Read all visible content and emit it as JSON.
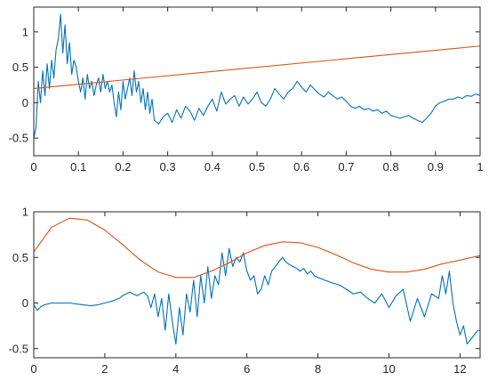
{
  "chart_data": [
    {
      "type": "line",
      "title": "",
      "xlabel": "",
      "ylabel": "",
      "xlim": [
        0,
        1
      ],
      "ylim": [
        -0.75,
        1.35
      ],
      "xticks": [
        0,
        0.1,
        0.2,
        0.3,
        0.4,
        0.5,
        0.6,
        0.7,
        0.8,
        0.9,
        1
      ],
      "xtick_labels": [
        "0",
        "0.1",
        "0.2",
        "0.3",
        "0.4",
        "0.5",
        "0.6",
        "0.7",
        "0.8",
        "0.9",
        "1"
      ],
      "yticks": [
        -0.5,
        0,
        0.5,
        1
      ],
      "ytick_labels": [
        "-0.5",
        "0",
        "0.5",
        "1"
      ],
      "grid": false,
      "series": [
        {
          "color": "#0072BD",
          "x": [
            0,
            0.005,
            0.01,
            0.015,
            0.02,
            0.025,
            0.03,
            0.035,
            0.04,
            0.045,
            0.05,
            0.055,
            0.06,
            0.065,
            0.07,
            0.075,
            0.08,
            0.085,
            0.09,
            0.095,
            0.1,
            0.105,
            0.11,
            0.115,
            0.12,
            0.125,
            0.13,
            0.135,
            0.14,
            0.145,
            0.15,
            0.155,
            0.16,
            0.165,
            0.17,
            0.175,
            0.18,
            0.185,
            0.19,
            0.195,
            0.2,
            0.205,
            0.21,
            0.215,
            0.22,
            0.225,
            0.23,
            0.235,
            0.24,
            0.245,
            0.25,
            0.255,
            0.26,
            0.265,
            0.27,
            0.28,
            0.29,
            0.3,
            0.31,
            0.32,
            0.33,
            0.34,
            0.35,
            0.36,
            0.37,
            0.38,
            0.39,
            0.4,
            0.41,
            0.42,
            0.43,
            0.44,
            0.45,
            0.46,
            0.47,
            0.48,
            0.49,
            0.5,
            0.51,
            0.52,
            0.53,
            0.54,
            0.55,
            0.56,
            0.57,
            0.58,
            0.59,
            0.6,
            0.61,
            0.62,
            0.63,
            0.64,
            0.65,
            0.66,
            0.67,
            0.68,
            0.69,
            0.7,
            0.71,
            0.72,
            0.73,
            0.74,
            0.75,
            0.76,
            0.77,
            0.78,
            0.79,
            0.8,
            0.81,
            0.82,
            0.83,
            0.84,
            0.85,
            0.86,
            0.87,
            0.88,
            0.89,
            0.9,
            0.91,
            0.92,
            0.93,
            0.94,
            0.95,
            0.96,
            0.97,
            0.98,
            0.99,
            1
          ],
          "y": [
            -0.5,
            -0.35,
            0.3,
            0.0,
            0.45,
            0.1,
            0.55,
            0.2,
            0.6,
            0.35,
            0.75,
            0.9,
            1.25,
            0.7,
            1.1,
            0.55,
            0.85,
            0.4,
            0.6,
            0.5,
            0.3,
            0.15,
            0.35,
            0.05,
            0.4,
            0.2,
            0.3,
            0.1,
            0.25,
            0.35,
            0.15,
            0.4,
            0.2,
            0.3,
            0.15,
            0.25,
            0.0,
            -0.2,
            0.15,
            -0.1,
            0.3,
            0.05,
            0.2,
            0.35,
            0.1,
            0.45,
            0.15,
            0.3,
            0.0,
            0.2,
            -0.1,
            0.15,
            -0.15,
            0.05,
            -0.25,
            -0.3,
            -0.2,
            -0.15,
            -0.28,
            -0.1,
            -0.22,
            -0.05,
            -0.12,
            -0.25,
            -0.08,
            -0.18,
            -0.05,
            0.05,
            -0.12,
            0.15,
            -0.02,
            0.05,
            0.1,
            -0.05,
            0.08,
            -0.02,
            0.05,
            0.15,
            0.0,
            -0.05,
            0.05,
            0.2,
            0.12,
            0.05,
            0.15,
            0.2,
            0.3,
            0.22,
            0.15,
            0.25,
            0.18,
            0.12,
            0.08,
            0.15,
            0.1,
            0.05,
            0.08,
            0.02,
            -0.05,
            -0.08,
            -0.05,
            -0.1,
            -0.08,
            -0.12,
            -0.1,
            -0.15,
            -0.12,
            -0.18,
            -0.2,
            -0.22,
            -0.2,
            -0.18,
            -0.22,
            -0.25,
            -0.28,
            -0.22,
            -0.15,
            -0.05,
            0.0,
            0.02,
            0.05,
            0.05,
            0.08,
            0.06,
            0.1,
            0.09,
            0.12,
            0.1
          ]
        },
        {
          "color": "#D95319",
          "x": [
            0,
            1
          ],
          "y": [
            0.2,
            0.8
          ]
        }
      ]
    },
    {
      "type": "line",
      "title": "",
      "xlabel": "",
      "ylabel": "",
      "xlim": [
        0,
        12.566
      ],
      "ylim": [
        -0.6,
        1.0
      ],
      "xticks": [
        0,
        2,
        4,
        6,
        8,
        10,
        12
      ],
      "xtick_labels": [
        "0",
        "2",
        "4",
        "6",
        "8",
        "10",
        "12"
      ],
      "yticks": [
        -0.5,
        0,
        0.5,
        1
      ],
      "ytick_labels": [
        "-0.5",
        "0",
        "0.5",
        "1"
      ],
      "grid": false,
      "series": [
        {
          "color": "#0072BD",
          "x": [
            0,
            0.1,
            0.2,
            0.3,
            0.4,
            0.5,
            0.6,
            0.8,
            1.0,
            1.2,
            1.4,
            1.6,
            1.8,
            2.0,
            2.2,
            2.4,
            2.5,
            2.6,
            2.7,
            2.8,
            2.9,
            3.0,
            3.1,
            3.2,
            3.3,
            3.4,
            3.5,
            3.6,
            3.7,
            3.8,
            3.9,
            4.0,
            4.1,
            4.2,
            4.3,
            4.4,
            4.5,
            4.6,
            4.7,
            4.8,
            4.9,
            5.0,
            5.1,
            5.2,
            5.3,
            5.4,
            5.5,
            5.6,
            5.7,
            5.8,
            5.9,
            6.0,
            6.1,
            6.2,
            6.3,
            6.4,
            6.5,
            6.6,
            6.7,
            6.8,
            6.9,
            7.0,
            7.1,
            7.2,
            7.3,
            7.4,
            7.5,
            7.6,
            7.7,
            7.8,
            7.9,
            8.0,
            8.2,
            8.4,
            8.6,
            8.8,
            9.0,
            9.2,
            9.4,
            9.6,
            9.8,
            10.0,
            10.2,
            10.4,
            10.6,
            10.8,
            11.0,
            11.2,
            11.4,
            11.5,
            11.6,
            11.7,
            11.8,
            11.9,
            12.0,
            12.1,
            12.2,
            12.3,
            12.4,
            12.5,
            12.566
          ],
          "y": [
            -0.02,
            -0.08,
            -0.04,
            -0.02,
            -0.01,
            0.0,
            0.0,
            0.0,
            0.0,
            -0.01,
            -0.02,
            -0.03,
            -0.02,
            0.0,
            0.02,
            0.05,
            0.08,
            0.1,
            0.12,
            0.1,
            0.08,
            0.1,
            0.12,
            0.08,
            -0.05,
            0.1,
            -0.15,
            0.05,
            -0.3,
            0.1,
            -0.2,
            -0.45,
            -0.05,
            -0.35,
            0.1,
            -0.1,
            0.25,
            -0.15,
            0.3,
            0.0,
            0.4,
            0.05,
            0.3,
            0.2,
            0.55,
            0.3,
            0.6,
            0.4,
            0.5,
            0.45,
            0.55,
            0.35,
            0.25,
            0.3,
            0.1,
            0.15,
            0.3,
            0.2,
            0.35,
            0.4,
            0.45,
            0.5,
            0.45,
            0.42,
            0.4,
            0.38,
            0.35,
            0.38,
            0.32,
            0.35,
            0.3,
            0.28,
            0.25,
            0.22,
            0.2,
            0.15,
            0.1,
            0.12,
            0.05,
            0.0,
            0.1,
            -0.05,
            0.08,
            0.15,
            -0.2,
            0.05,
            -0.15,
            0.1,
            0.05,
            0.3,
            0.1,
            0.35,
            0.0,
            -0.2,
            -0.35,
            -0.25,
            -0.45,
            -0.4,
            -0.35,
            -0.3,
            -0.3
          ]
        },
        {
          "color": "#D95319",
          "x": [
            0,
            0.5,
            1.0,
            1.5,
            2.0,
            2.5,
            3.0,
            3.5,
            4.0,
            4.5,
            5.0,
            5.5,
            6.0,
            6.5,
            7.0,
            7.5,
            8.0,
            8.5,
            9.0,
            9.5,
            10.0,
            10.5,
            11.0,
            11.5,
            12.0,
            12.566
          ],
          "y": [
            0.56,
            0.83,
            0.93,
            0.91,
            0.8,
            0.64,
            0.47,
            0.34,
            0.28,
            0.28,
            0.35,
            0.44,
            0.55,
            0.63,
            0.67,
            0.66,
            0.61,
            0.53,
            0.44,
            0.37,
            0.34,
            0.34,
            0.37,
            0.43,
            0.47,
            0.52
          ]
        }
      ]
    }
  ]
}
